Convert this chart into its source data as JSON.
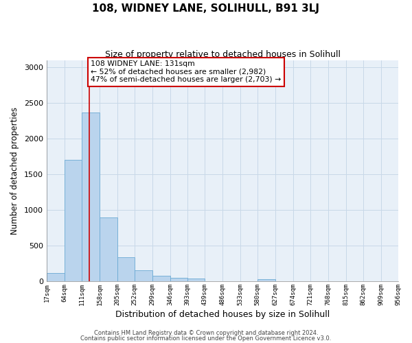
{
  "title": "108, WIDNEY LANE, SOLIHULL, B91 3LJ",
  "subtitle": "Size of property relative to detached houses in Solihull",
  "xlabel": "Distribution of detached houses by size in Solihull",
  "ylabel": "Number of detached properties",
  "bar_edges": [
    17,
    64,
    111,
    158,
    205,
    252,
    299,
    346,
    393,
    439,
    486,
    533,
    580,
    627,
    674,
    721,
    768,
    815,
    862,
    909,
    956
  ],
  "bar_heights": [
    120,
    1700,
    2370,
    900,
    340,
    155,
    80,
    45,
    35,
    0,
    0,
    0,
    25,
    0,
    0,
    0,
    0,
    0,
    0,
    0
  ],
  "bar_color": "#bad4ed",
  "bar_edgecolor": "#6aaad4",
  "grid_color": "#c8d8e8",
  "background_color": "#e8f0f8",
  "red_line_x": 131,
  "annotation_title": "108 WIDNEY LANE: 131sqm",
  "annotation_line1": "← 52% of detached houses are smaller (2,982)",
  "annotation_line2": "47% of semi-detached houses are larger (2,703) →",
  "annotation_box_color": "#ffffff",
  "annotation_box_edgecolor": "#cc0000",
  "ylim": [
    0,
    3100
  ],
  "yticks": [
    0,
    500,
    1000,
    1500,
    2000,
    2500,
    3000
  ],
  "footnote1": "Contains HM Land Registry data © Crown copyright and database right 2024.",
  "footnote2": "Contains public sector information licensed under the Open Government Licence v3.0."
}
